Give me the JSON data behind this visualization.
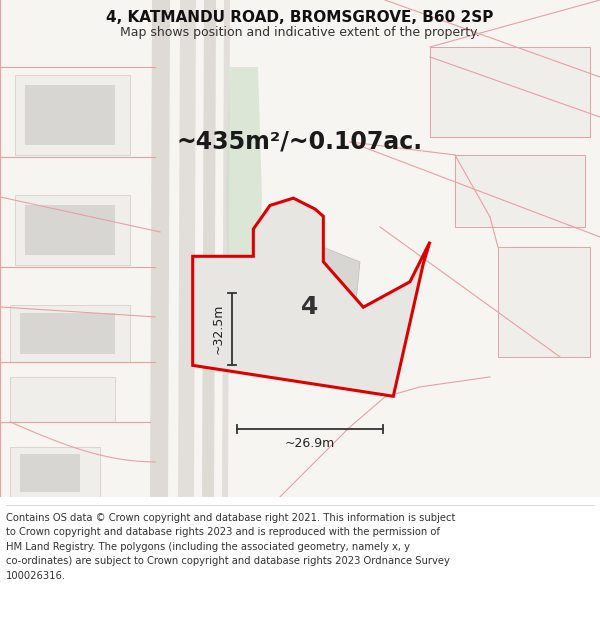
{
  "title_line1": "4, KATMANDU ROAD, BROMSGROVE, B60 2SP",
  "title_line2": "Map shows position and indicative extent of the property.",
  "area_label": "~435m²/~0.107ac.",
  "number_label": "4",
  "dim_width": "~26.9m",
  "dim_height": "~32.5m",
  "footer_lines": [
    "Contains OS data © Crown copyright and database right 2021. This information is subject",
    "to Crown copyright and database rights 2023 and is reproduced with the permission of",
    "HM Land Registry. The polygons (including the associated geometry, namely x, y",
    "co-ordinates) are subject to Crown copyright and database rights 2023 Ordnance Survey",
    "100026316."
  ],
  "map_bg": "#f7f5f2",
  "property_fill": "#e8e6e2",
  "property_edge": "#dd0000",
  "building_fill": "#d8d6d2",
  "building_edge": "#c8c4be",
  "road_line_color": "#e8a0a0",
  "green_fill": "#ccdfc8",
  "road_fill": "#e8e4de",
  "road_strip1": "#dedad4",
  "road_strip2": "#e2deda",
  "footer_bg": "#ffffff",
  "title_fontsize": 11,
  "subtitle_fontsize": 9,
  "area_fontsize": 17,
  "number_fontsize": 18,
  "dim_fontsize": 9,
  "footer_fontsize": 7.2
}
